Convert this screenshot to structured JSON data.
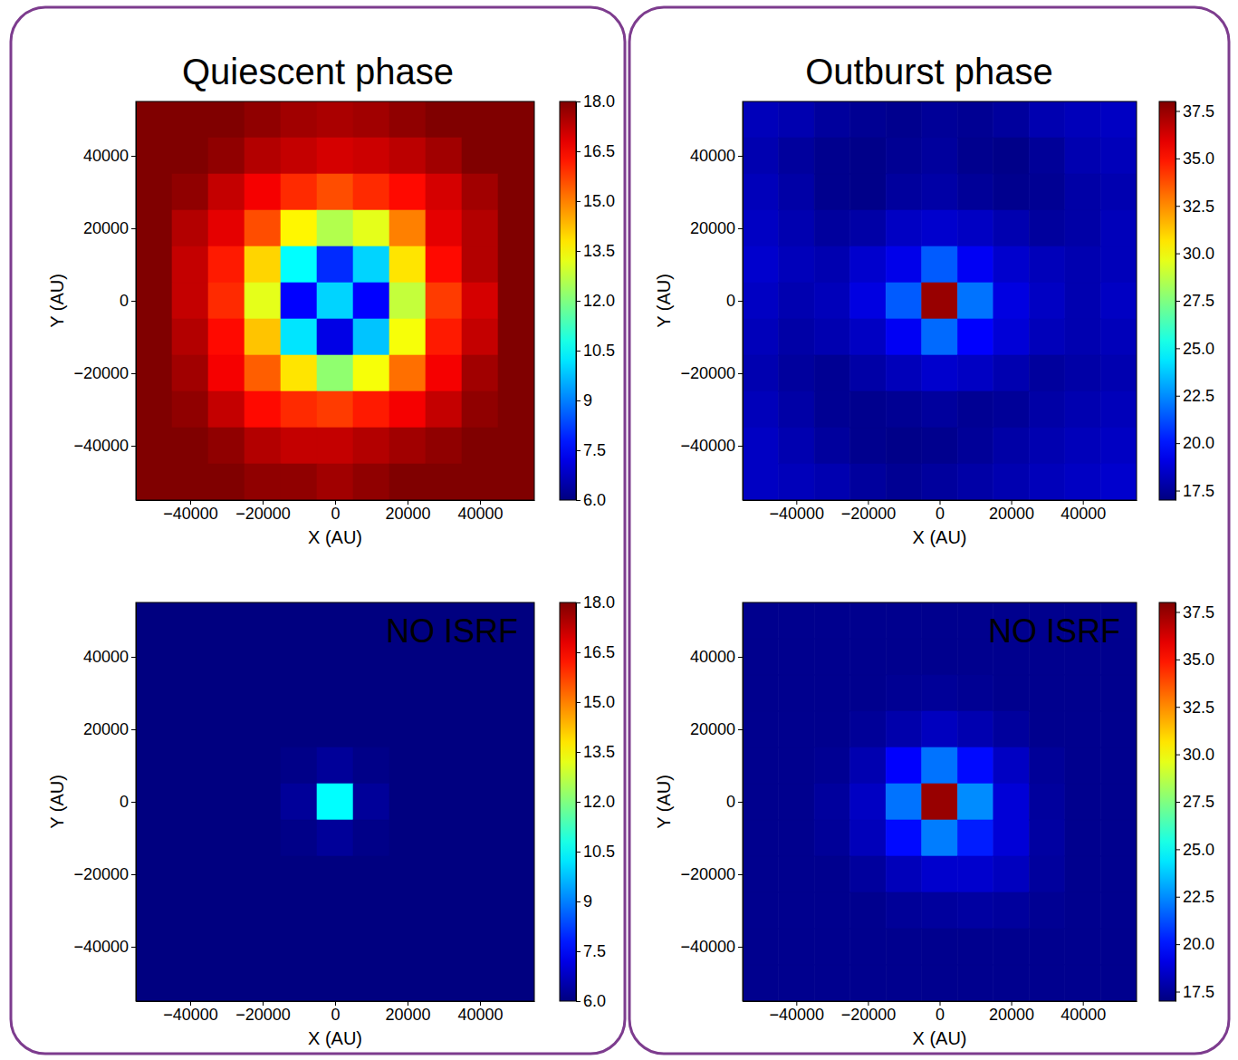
{
  "chart_data": [
    {
      "type": "heatmap",
      "title": "Quiescent phase",
      "xlabel": "X (AU)",
      "ylabel": "Y (AU)",
      "xlim": [
        -55000,
        55000
      ],
      "ylim": [
        -55000,
        55000
      ],
      "xticks": [
        {
          "value": -40000,
          "label": "−40000"
        },
        {
          "value": -20000,
          "label": "−20000"
        },
        0,
        20000,
        40000
      ],
      "yticks": [
        {
          "value": -40000,
          "label": "−40000"
        },
        {
          "value": -20000,
          "label": "−20000"
        },
        0,
        20000,
        40000
      ],
      "x": [
        -50000,
        -40000,
        -30000,
        -20000,
        -10000,
        0,
        10000,
        20000,
        30000,
        40000,
        50000
      ],
      "y": [
        50000,
        40000,
        30000,
        20000,
        10000,
        0,
        -10000,
        -20000,
        -30000,
        -40000,
        -50000
      ],
      "z": [
        [
          18,
          18,
          18,
          17.8,
          17.6,
          17.5,
          17.6,
          17.8,
          18,
          18,
          18
        ],
        [
          18,
          18,
          17.8,
          17.4,
          17.2,
          17,
          17.1,
          17.3,
          17.6,
          18,
          18
        ],
        [
          18,
          17.8,
          17.2,
          16.6,
          16,
          15.6,
          16,
          16.4,
          17,
          17.6,
          18
        ],
        [
          18,
          17.4,
          16.8,
          15.6,
          13.6,
          12.6,
          13.2,
          15,
          16.8,
          17.4,
          18
        ],
        [
          18,
          17.2,
          16.2,
          14,
          10.5,
          8,
          10,
          13.8,
          16.4,
          17.4,
          18
        ],
        [
          18,
          17.2,
          16,
          13.2,
          7.5,
          10,
          7.5,
          12.8,
          15.8,
          17,
          18
        ],
        [
          18,
          17.4,
          16.4,
          14.2,
          10.2,
          7.2,
          9.8,
          13.4,
          16.2,
          17.2,
          18
        ],
        [
          18,
          17.6,
          16.6,
          15.4,
          13.8,
          12.2,
          13.4,
          15.2,
          16.6,
          17.6,
          18
        ],
        [
          18,
          17.8,
          17.2,
          16.4,
          16,
          15.8,
          16.2,
          16.6,
          17.2,
          17.8,
          18
        ],
        [
          18,
          18,
          17.8,
          17.4,
          17.2,
          17.2,
          17.4,
          17.6,
          17.8,
          18,
          18
        ],
        [
          18,
          18,
          18,
          17.8,
          17.8,
          17.6,
          17.8,
          18,
          18,
          18,
          18
        ]
      ],
      "colorbar_lim": [
        6,
        18
      ],
      "colorbar_ticks": [
        {
          "value": 6,
          "label": "6.0"
        },
        7.5,
        9,
        10.5,
        {
          "value": 12,
          "label": "12.0"
        },
        13.5,
        {
          "value": 15,
          "label": "15.0"
        },
        16.5,
        {
          "value": 18,
          "label": "18.0"
        }
      ]
    },
    {
      "type": "heatmap",
      "annotation": "NO ISRF",
      "xlabel": "X (AU)",
      "ylabel": "Y (AU)",
      "xlim": [
        -55000,
        55000
      ],
      "ylim": [
        -55000,
        55000
      ],
      "xticks": [
        {
          "value": -40000,
          "label": "−40000"
        },
        {
          "value": -20000,
          "label": "−20000"
        },
        0,
        20000,
        40000
      ],
      "yticks": [
        {
          "value": -40000,
          "label": "−40000"
        },
        {
          "value": -20000,
          "label": "−20000"
        },
        0,
        20000,
        40000
      ],
      "x": [
        -50000,
        -40000,
        -30000,
        -20000,
        -10000,
        0,
        10000,
        20000,
        30000,
        40000,
        50000
      ],
      "y": [
        50000,
        40000,
        30000,
        20000,
        10000,
        0,
        -10000,
        -20000,
        -30000,
        -40000,
        -50000
      ],
      "z": [
        [
          6,
          6,
          6,
          6,
          6,
          6,
          6,
          6,
          6,
          6,
          6
        ],
        [
          6,
          6,
          6,
          6,
          6,
          6,
          6,
          6,
          6,
          6,
          6
        ],
        [
          6,
          6,
          6,
          6,
          6,
          6,
          6,
          6,
          6,
          6,
          6
        ],
        [
          6,
          6,
          6,
          6,
          6,
          6,
          6,
          6,
          6,
          6,
          6
        ],
        [
          6,
          6,
          6,
          6,
          6.1,
          6.3,
          6.1,
          6,
          6,
          6,
          6
        ],
        [
          6,
          6,
          6,
          6,
          6.3,
          10.5,
          6.3,
          6,
          6,
          6,
          6
        ],
        [
          6,
          6,
          6,
          6,
          6.1,
          6.3,
          6.1,
          6,
          6,
          6,
          6
        ],
        [
          6,
          6,
          6,
          6,
          6,
          6,
          6,
          6,
          6,
          6,
          6
        ],
        [
          6,
          6,
          6,
          6,
          6,
          6,
          6,
          6,
          6,
          6,
          6
        ],
        [
          6,
          6,
          6,
          6,
          6,
          6,
          6,
          6,
          6,
          6,
          6
        ],
        [
          6,
          6,
          6,
          6,
          6,
          6,
          6,
          6,
          6,
          6,
          6
        ]
      ],
      "colorbar_lim": [
        6,
        18
      ],
      "colorbar_ticks": [
        {
          "value": 6,
          "label": "6.0"
        },
        7.5,
        9,
        10.5,
        {
          "value": 12,
          "label": "12.0"
        },
        13.5,
        {
          "value": 15,
          "label": "15.0"
        },
        16.5,
        {
          "value": 18,
          "label": "18.0"
        }
      ]
    },
    {
      "type": "heatmap",
      "title": "Outburst phase",
      "xlabel": "X (AU)",
      "ylabel": "Y (AU)",
      "xlim": [
        -55000,
        55000
      ],
      "ylim": [
        -55000,
        55000
      ],
      "xticks": [
        {
          "value": -40000,
          "label": "−40000"
        },
        {
          "value": -20000,
          "label": "−20000"
        },
        0,
        20000,
        40000
      ],
      "yticks": [
        {
          "value": -40000,
          "label": "−40000"
        },
        {
          "value": -20000,
          "label": "−20000"
        },
        0,
        20000,
        40000
      ],
      "x": [
        -50000,
        -40000,
        -30000,
        -20000,
        -10000,
        0,
        10000,
        20000,
        30000,
        40000,
        50000
      ],
      "y": [
        50000,
        40000,
        30000,
        20000,
        10000,
        0,
        -10000,
        -20000,
        -30000,
        -40000,
        -50000
      ],
      "z": [
        [
          18.2,
          18,
          17.6,
          17.4,
          17.3,
          17.5,
          17.4,
          17.6,
          18,
          18.2,
          18.4
        ],
        [
          18,
          17.6,
          17.3,
          17.2,
          17.4,
          17.6,
          17.3,
          17.2,
          17.5,
          18,
          18.2
        ],
        [
          18.2,
          17.8,
          17.3,
          17.2,
          17.6,
          17.8,
          17.5,
          17.3,
          17.4,
          17.8,
          18
        ],
        [
          18.4,
          18,
          17.6,
          17.8,
          18.4,
          18.6,
          18.4,
          18,
          17.6,
          17.8,
          18.2
        ],
        [
          18.6,
          18.2,
          18,
          18.6,
          19.2,
          21.5,
          19.4,
          18.6,
          18.2,
          18,
          18.2
        ],
        [
          18.4,
          18,
          18.2,
          19,
          21.5,
          37.5,
          22,
          19,
          18.4,
          18,
          18.4
        ],
        [
          18.2,
          17.8,
          18,
          18.4,
          19.4,
          21.8,
          19.6,
          18.8,
          18.2,
          18,
          18.2
        ],
        [
          18,
          17.6,
          17.4,
          17.8,
          18.2,
          18.6,
          18.4,
          18,
          17.6,
          17.8,
          18
        ],
        [
          18.2,
          17.8,
          17.4,
          17.3,
          17.4,
          17.6,
          17.4,
          17.5,
          17.8,
          18,
          18.2
        ],
        [
          18.4,
          18,
          17.6,
          17.3,
          17.2,
          17.3,
          17.5,
          17.8,
          18,
          18.2,
          18.4
        ],
        [
          18.4,
          18.2,
          18,
          17.6,
          17.4,
          17.6,
          17.8,
          18,
          18.2,
          18.4,
          18.6
        ]
      ],
      "colorbar_lim": [
        17,
        38
      ],
      "colorbar_ticks": [
        17.5,
        {
          "value": 20,
          "label": "20.0"
        },
        22.5,
        {
          "value": 25,
          "label": "25.0"
        },
        27.5,
        {
          "value": 30,
          "label": "30.0"
        },
        32.5,
        {
          "value": 35,
          "label": "35.0"
        },
        37.5
      ]
    },
    {
      "type": "heatmap",
      "annotation": "NO ISRF",
      "xlabel": "X (AU)",
      "ylabel": "Y (AU)",
      "xlim": [
        -55000,
        55000
      ],
      "ylim": [
        -55000,
        55000
      ],
      "xticks": [
        {
          "value": -40000,
          "label": "−40000"
        },
        {
          "value": -20000,
          "label": "−20000"
        },
        0,
        20000,
        40000
      ],
      "yticks": [
        {
          "value": -40000,
          "label": "−40000"
        },
        {
          "value": -20000,
          "label": "−20000"
        },
        0,
        20000,
        40000
      ],
      "x": [
        -50000,
        -40000,
        -30000,
        -20000,
        -10000,
        0,
        10000,
        20000,
        30000,
        40000,
        50000
      ],
      "y": [
        50000,
        40000,
        30000,
        20000,
        10000,
        0,
        -10000,
        -20000,
        -30000,
        -40000,
        -50000
      ],
      "z": [
        [
          17.3,
          17.3,
          17.3,
          17.3,
          17.3,
          17.3,
          17.3,
          17.3,
          17.3,
          17.3,
          17.3
        ],
        [
          17.3,
          17.3,
          17.3,
          17.3,
          17.3,
          17.3,
          17.3,
          17.3,
          17.3,
          17.3,
          17.3
        ],
        [
          17.3,
          17.3,
          17.3,
          17.3,
          17.4,
          17.5,
          17.4,
          17.3,
          17.3,
          17.3,
          17.3
        ],
        [
          17.3,
          17.3,
          17.3,
          17.5,
          17.9,
          18.3,
          18,
          17.6,
          17.3,
          17.3,
          17.3
        ],
        [
          17.3,
          17.3,
          17.4,
          18,
          19.6,
          22,
          19.8,
          18.4,
          17.5,
          17.3,
          17.3
        ],
        [
          17.3,
          17.3,
          17.6,
          18.4,
          22,
          37.5,
          22.5,
          18.8,
          17.6,
          17.3,
          17.3
        ],
        [
          17.3,
          17.3,
          17.5,
          18.2,
          19.8,
          22.2,
          20.2,
          18.8,
          17.7,
          17.3,
          17.3
        ],
        [
          17.3,
          17.3,
          17.3,
          17.6,
          18.2,
          18.6,
          18.6,
          18.3,
          17.6,
          17.3,
          17.3
        ],
        [
          17.3,
          17.3,
          17.3,
          17.3,
          17.5,
          17.6,
          17.7,
          17.6,
          17.4,
          17.3,
          17.3
        ],
        [
          17.3,
          17.3,
          17.3,
          17.3,
          17.3,
          17.3,
          17.3,
          17.3,
          17.3,
          17.3,
          17.3
        ],
        [
          17.3,
          17.3,
          17.3,
          17.3,
          17.3,
          17.3,
          17.3,
          17.3,
          17.3,
          17.3,
          17.3
        ]
      ],
      "colorbar_lim": [
        17,
        38
      ],
      "colorbar_ticks": [
        17.5,
        {
          "value": 20,
          "label": "20.0"
        },
        22.5,
        {
          "value": 25,
          "label": "25.0"
        },
        27.5,
        {
          "value": 30,
          "label": "30.0"
        },
        32.5,
        {
          "value": 35,
          "label": "35.0"
        },
        37.5
      ]
    }
  ]
}
